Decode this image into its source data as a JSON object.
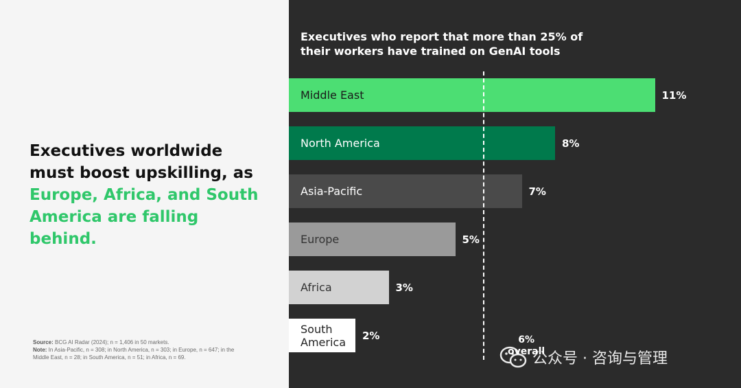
{
  "headline": {
    "part1": "Executives worldwide must boost upskilling, as ",
    "highlight": "Europe, Africa, and South America are falling behind."
  },
  "notes": {
    "source_label": "Source:",
    "source_text": " BCG AI Radar (2024); n = 1,406 in 50 markets.",
    "note_label": "Note:",
    "note_text": " In Asia-Pacific, n = 308; in North America, n = 303; in Europe, n = 647; in the Middle East, n = 28; in South America, n = 51; in Africa, n = 69."
  },
  "watermark": "公众号 · 咨询与管理",
  "colors": {
    "left_bg": "#f5f5f5",
    "right_bg": "#2b2b2b",
    "highlight": "#2fc76a"
  },
  "chart_data": {
    "type": "bar",
    "orientation": "horizontal",
    "title": "Executives who report that more than 25% of their workers have trained on GenAI tools",
    "categories": [
      "Middle East",
      "North America",
      "Asia-Pacific",
      "Europe",
      "Africa",
      "South America"
    ],
    "values": [
      11,
      8,
      7,
      5,
      3,
      2
    ],
    "value_labels": [
      "11%",
      "8%",
      "7%",
      "5%",
      "3%",
      "2%"
    ],
    "bar_colors": [
      "#4cde73",
      "#007a4c",
      "#4a4a4a",
      "#9a9a9a",
      "#d2d2d2",
      "#ffffff"
    ],
    "label_colors": [
      "#1a1a1a",
      "#ffffff",
      "#ffffff",
      "#333333",
      "#333333",
      "#222222"
    ],
    "reference": {
      "value": 6,
      "label": "6%",
      "sublabel": "overall"
    },
    "xlim": [
      0,
      11
    ],
    "grid": false,
    "legend": "none"
  }
}
